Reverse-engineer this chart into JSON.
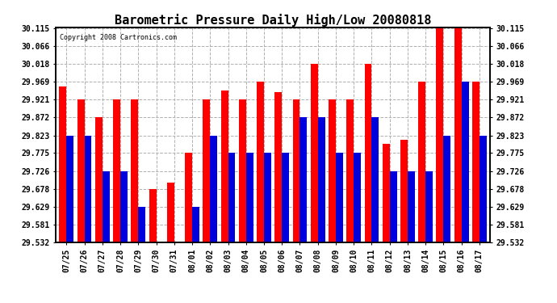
{
  "title": "Barometric Pressure Daily High/Low 20080818",
  "copyright": "Copyright 2008 Cartronics.com",
  "dates": [
    "07/25",
    "07/26",
    "07/27",
    "07/28",
    "07/29",
    "07/30",
    "07/31",
    "08/01",
    "08/02",
    "08/03",
    "08/04",
    "08/05",
    "08/06",
    "08/07",
    "08/08",
    "08/09",
    "08/10",
    "08/11",
    "08/12",
    "08/13",
    "08/14",
    "08/15",
    "08/16",
    "08/17"
  ],
  "highs": [
    29.955,
    29.921,
    29.872,
    29.921,
    29.921,
    29.678,
    29.694,
    29.775,
    29.921,
    29.944,
    29.921,
    29.969,
    29.94,
    29.921,
    30.018,
    29.921,
    29.921,
    30.018,
    29.8,
    29.81,
    29.969,
    30.115,
    30.115,
    29.969
  ],
  "lows": [
    29.823,
    29.823,
    29.726,
    29.726,
    29.629,
    29.532,
    29.532,
    29.629,
    29.823,
    29.775,
    29.775,
    29.775,
    29.775,
    29.872,
    29.872,
    29.775,
    29.775,
    29.872,
    29.726,
    29.726,
    29.726,
    29.823,
    29.969,
    29.823
  ],
  "ymin": 29.532,
  "ymax": 30.115,
  "yticks": [
    29.532,
    29.581,
    29.629,
    29.678,
    29.726,
    29.775,
    29.823,
    29.872,
    29.921,
    29.969,
    30.018,
    30.066,
    30.115
  ],
  "high_color": "#ff0000",
  "low_color": "#0000dd",
  "bg_color": "#ffffff",
  "grid_color": "#b0b0b0",
  "title_fontsize": 11,
  "tick_fontsize": 7,
  "bar_width": 0.4
}
